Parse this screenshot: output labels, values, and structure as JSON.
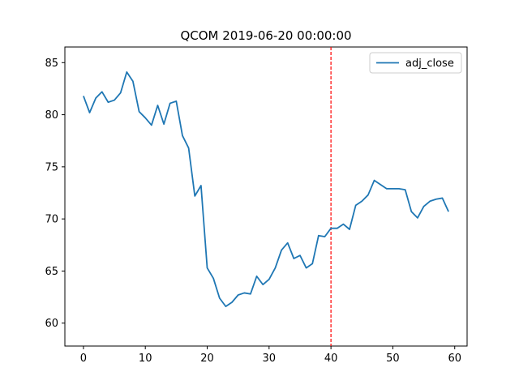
{
  "chart_data": {
    "type": "line",
    "title": "QCOM 2019-06-20 00:00:00",
    "xlabel": "",
    "ylabel": "",
    "xlim": [
      -3,
      62
    ],
    "ylim": [
      57.8,
      86.5
    ],
    "xticks": [
      0,
      10,
      20,
      30,
      40,
      50,
      60
    ],
    "yticks": [
      60,
      65,
      70,
      75,
      80,
      85
    ],
    "grid": false,
    "legend_position": "top-right",
    "series": [
      {
        "name": "adj_close",
        "color": "#1f77b4",
        "x": [
          0,
          1,
          2,
          3,
          4,
          5,
          6,
          7,
          8,
          9,
          10,
          11,
          12,
          13,
          14,
          15,
          16,
          17,
          18,
          19,
          20,
          21,
          22,
          23,
          24,
          25,
          26,
          27,
          28,
          29,
          30,
          31,
          32,
          33,
          34,
          35,
          36,
          37,
          38,
          39,
          40,
          41,
          42,
          43,
          44,
          45,
          46,
          47,
          48,
          49,
          50,
          51,
          52,
          53,
          54,
          55,
          56,
          57,
          58,
          59
        ],
        "values": [
          81.8,
          80.2,
          81.6,
          82.2,
          81.2,
          81.4,
          82.1,
          84.1,
          83.2,
          80.3,
          79.7,
          79.0,
          80.9,
          79.1,
          81.1,
          81.3,
          78.0,
          76.8,
          72.2,
          73.2,
          65.3,
          64.3,
          62.4,
          61.6,
          62.0,
          62.7,
          62.9,
          62.8,
          64.5,
          63.7,
          64.2,
          65.3,
          67.0,
          67.7,
          66.2,
          66.5,
          65.3,
          65.7,
          68.4,
          68.3,
          69.1,
          69.1,
          69.5,
          69.0,
          71.3,
          71.7,
          72.3,
          73.7,
          73.3,
          72.9,
          72.9,
          72.9,
          72.8,
          70.7,
          70.1,
          71.2,
          71.7,
          71.9,
          72.0,
          70.7
        ]
      }
    ],
    "vline": {
      "x": 40,
      "color": "#ff0000",
      "style": "dashed"
    }
  }
}
